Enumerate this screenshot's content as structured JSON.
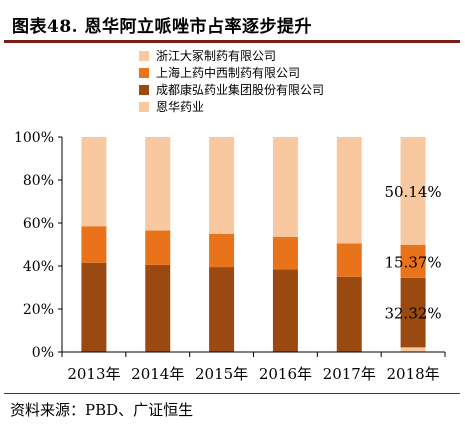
{
  "header": {
    "title": "图表48. 恩华阿立哌唑市占率逐步提升"
  },
  "footer": {
    "source": "资料来源：PBD、广证恒生"
  },
  "colors": {
    "accent_rule": "#7a1f16"
  },
  "chart_data": {
    "type": "bar",
    "stacked": true,
    "categories": [
      "2013年",
      "2014年",
      "2015年",
      "2016年",
      "2017年",
      "2018年"
    ],
    "series": [
      {
        "name": "恩华药业",
        "color": "#f8c9a0",
        "values": [
          0,
          0,
          0,
          0,
          0,
          2.17
        ]
      },
      {
        "name": "成都康弘药业集团股份有限公司",
        "color": "#9a4a10",
        "values": [
          41.5,
          40.5,
          39.5,
          38.5,
          35.0,
          32.32
        ]
      },
      {
        "name": "上海上药中西制药有限公司",
        "color": "#e8731a",
        "values": [
          17.0,
          16.0,
          15.5,
          15.0,
          15.5,
          15.37
        ]
      },
      {
        "name": "浙江大冢制药有限公司",
        "color": "#f8c9a0",
        "values": [
          41.5,
          43.5,
          45.0,
          46.5,
          49.5,
          50.14
        ]
      }
    ],
    "legend_order": [
      "浙江大冢制药有限公司",
      "上海上药中西制药有限公司",
      "成都康弘药业集团股份有限公司",
      "恩华药业"
    ],
    "legend_position": "top",
    "annotations": [
      "50.14%",
      "15.37%",
      "32.32%"
    ],
    "y_ticks": [
      "0%",
      "20%",
      "40%",
      "60%",
      "80%",
      "100%"
    ],
    "ylim": [
      0,
      100
    ],
    "xlabel": "",
    "ylabel": "",
    "grid": false
  }
}
